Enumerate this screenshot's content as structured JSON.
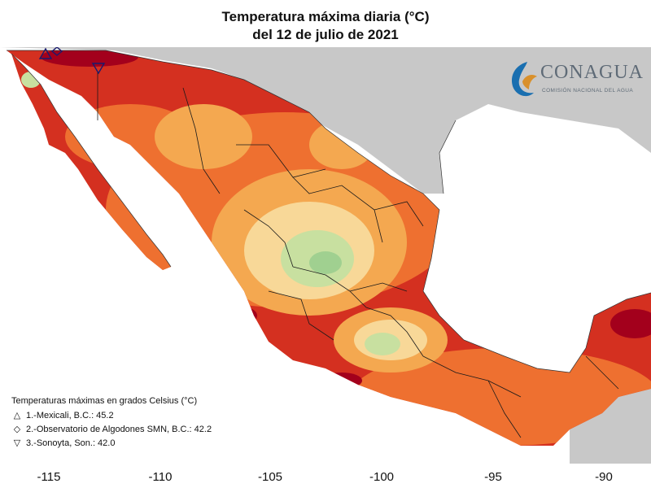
{
  "title": {
    "line1": "Temperatura máxima diaria (°C)",
    "line2": "del 12 de julio de 2021"
  },
  "logo": {
    "name": "CONAGUA",
    "subtitle": "COMISIÓN NACIONAL DEL AGUA"
  },
  "axis": {
    "x_ticks": [
      "-115",
      "-110",
      "-105",
      "-100",
      "-95",
      "-90"
    ]
  },
  "legend": {
    "heading": "Temperaturas máximas en grados Celsius (°C)",
    "items": [
      {
        "symbol": "△",
        "text": "1.-Mexicali, B.C.: 45.2"
      },
      {
        "symbol": "◇",
        "text": "2.-Observatorio de Algodones SMN, B.C.: 42.2"
      },
      {
        "symbol": "▽",
        "text": "3.-Sonoyta, Son.: 42.0"
      }
    ]
  },
  "colors": {
    "ocean": "#ffffff",
    "land_outside": "#c8c8c8",
    "hot_dark": "#a3001c",
    "hot": "#d43020",
    "warm": "#ee7030",
    "mild": "#f4a850",
    "mild_light": "#f8d898",
    "cool": "#c8e0a0",
    "cooler": "#a0d090",
    "logo_blue": "#1a6fb0"
  }
}
